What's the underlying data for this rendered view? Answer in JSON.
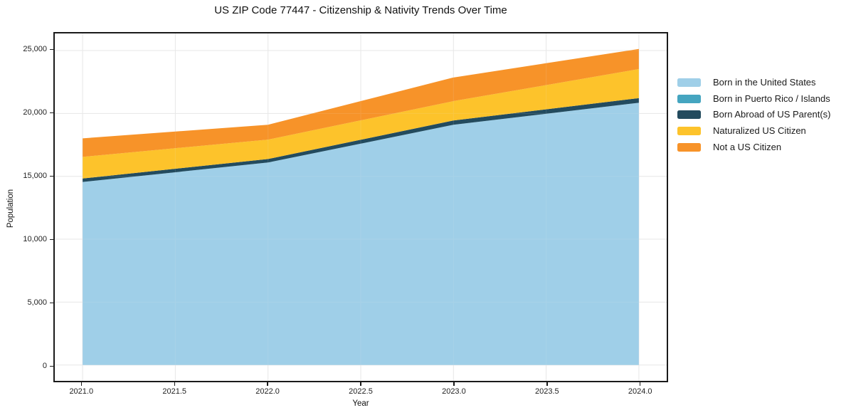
{
  "title": "US ZIP Code 77447 - Citizenship & Nativity Trends Over Time",
  "chart_data": {
    "type": "area",
    "stacked": true,
    "title": "US ZIP Code 77447 - Citizenship & Nativity Trends Over Time",
    "xlabel": "Year",
    "ylabel": "Population",
    "x": [
      2021,
      2022,
      2023,
      2024
    ],
    "series": [
      {
        "name": "Born in the United States",
        "color": "#9FCFE8",
        "values": [
          14550,
          16100,
          19100,
          20850
        ]
      },
      {
        "name": "Born in Puerto Rico / Islands",
        "color": "#45A5C0",
        "values": [
          0,
          0,
          0,
          0
        ]
      },
      {
        "name": "Born Abroad of US Parent(s)",
        "color": "#234B5E",
        "values": [
          280,
          280,
          340,
          370
        ]
      },
      {
        "name": "Naturalized US Citizen",
        "color": "#FDC32B",
        "values": [
          1720,
          1540,
          1540,
          2310
        ]
      },
      {
        "name": "Not a US Citizen",
        "color": "#F79329",
        "values": [
          1470,
          1180,
          1880,
          1600
        ]
      }
    ],
    "totals": [
      18020,
      19100,
      22860,
      25130
    ],
    "xlim": [
      2020.85,
      2024.15
    ],
    "ylim": [
      -1260,
      26360
    ],
    "xticks": [
      2021.0,
      2021.5,
      2022.0,
      2022.5,
      2023.0,
      2023.5,
      2024.0
    ],
    "xtick_labels": [
      "2021.0",
      "2021.5",
      "2022.0",
      "2022.5",
      "2023.0",
      "2023.5",
      "2024.0"
    ],
    "yticks": [
      0,
      5000,
      10000,
      15000,
      20000,
      25000
    ],
    "ytick_labels": [
      "0",
      "5,000",
      "10,000",
      "15,000",
      "20,000",
      "25,000"
    ],
    "grid": true,
    "legend_position": "right",
    "colors": {
      "gridline": "#E7E7E7",
      "spine": "#1A1A1A",
      "tick_text": "#222222"
    }
  }
}
